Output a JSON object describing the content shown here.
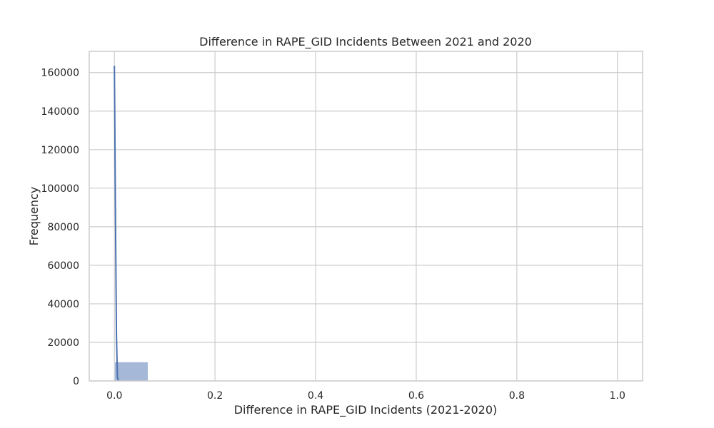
{
  "chart_data": {
    "type": "bar",
    "title": "Difference in RAPE_GID Incidents Between 2021 and 2020",
    "xlabel": "Difference in RAPE_GID Incidents (2021-2020)",
    "ylabel": "Frequency",
    "xlim": [
      -0.05,
      1.05
    ],
    "ylim": [
      0,
      171000
    ],
    "grid": true,
    "xticks": [
      0.0,
      0.2,
      0.4,
      0.6,
      0.8,
      1.0
    ],
    "xtick_labels": [
      "0.0",
      "0.2",
      "0.4",
      "0.6",
      "0.8",
      "1.0"
    ],
    "yticks": [
      0,
      20000,
      40000,
      60000,
      80000,
      100000,
      120000,
      140000,
      160000
    ],
    "ytick_labels": [
      "0",
      "20000",
      "40000",
      "60000",
      "80000",
      "100000",
      "120000",
      "140000",
      "160000"
    ],
    "bins": [
      {
        "x0": 0.0,
        "x1": 0.0667,
        "count": 9800
      }
    ],
    "kde": {
      "x": [
        0.0,
        0.002,
        0.004,
        0.006,
        0.008
      ],
      "y": [
        163500,
        90000,
        25000,
        2000,
        0
      ]
    },
    "colors": {
      "bar": "#4c72b0",
      "kde": "#4c72b0",
      "grid": "#cccccc",
      "spine": "#cccccc",
      "text": "#262626"
    }
  }
}
